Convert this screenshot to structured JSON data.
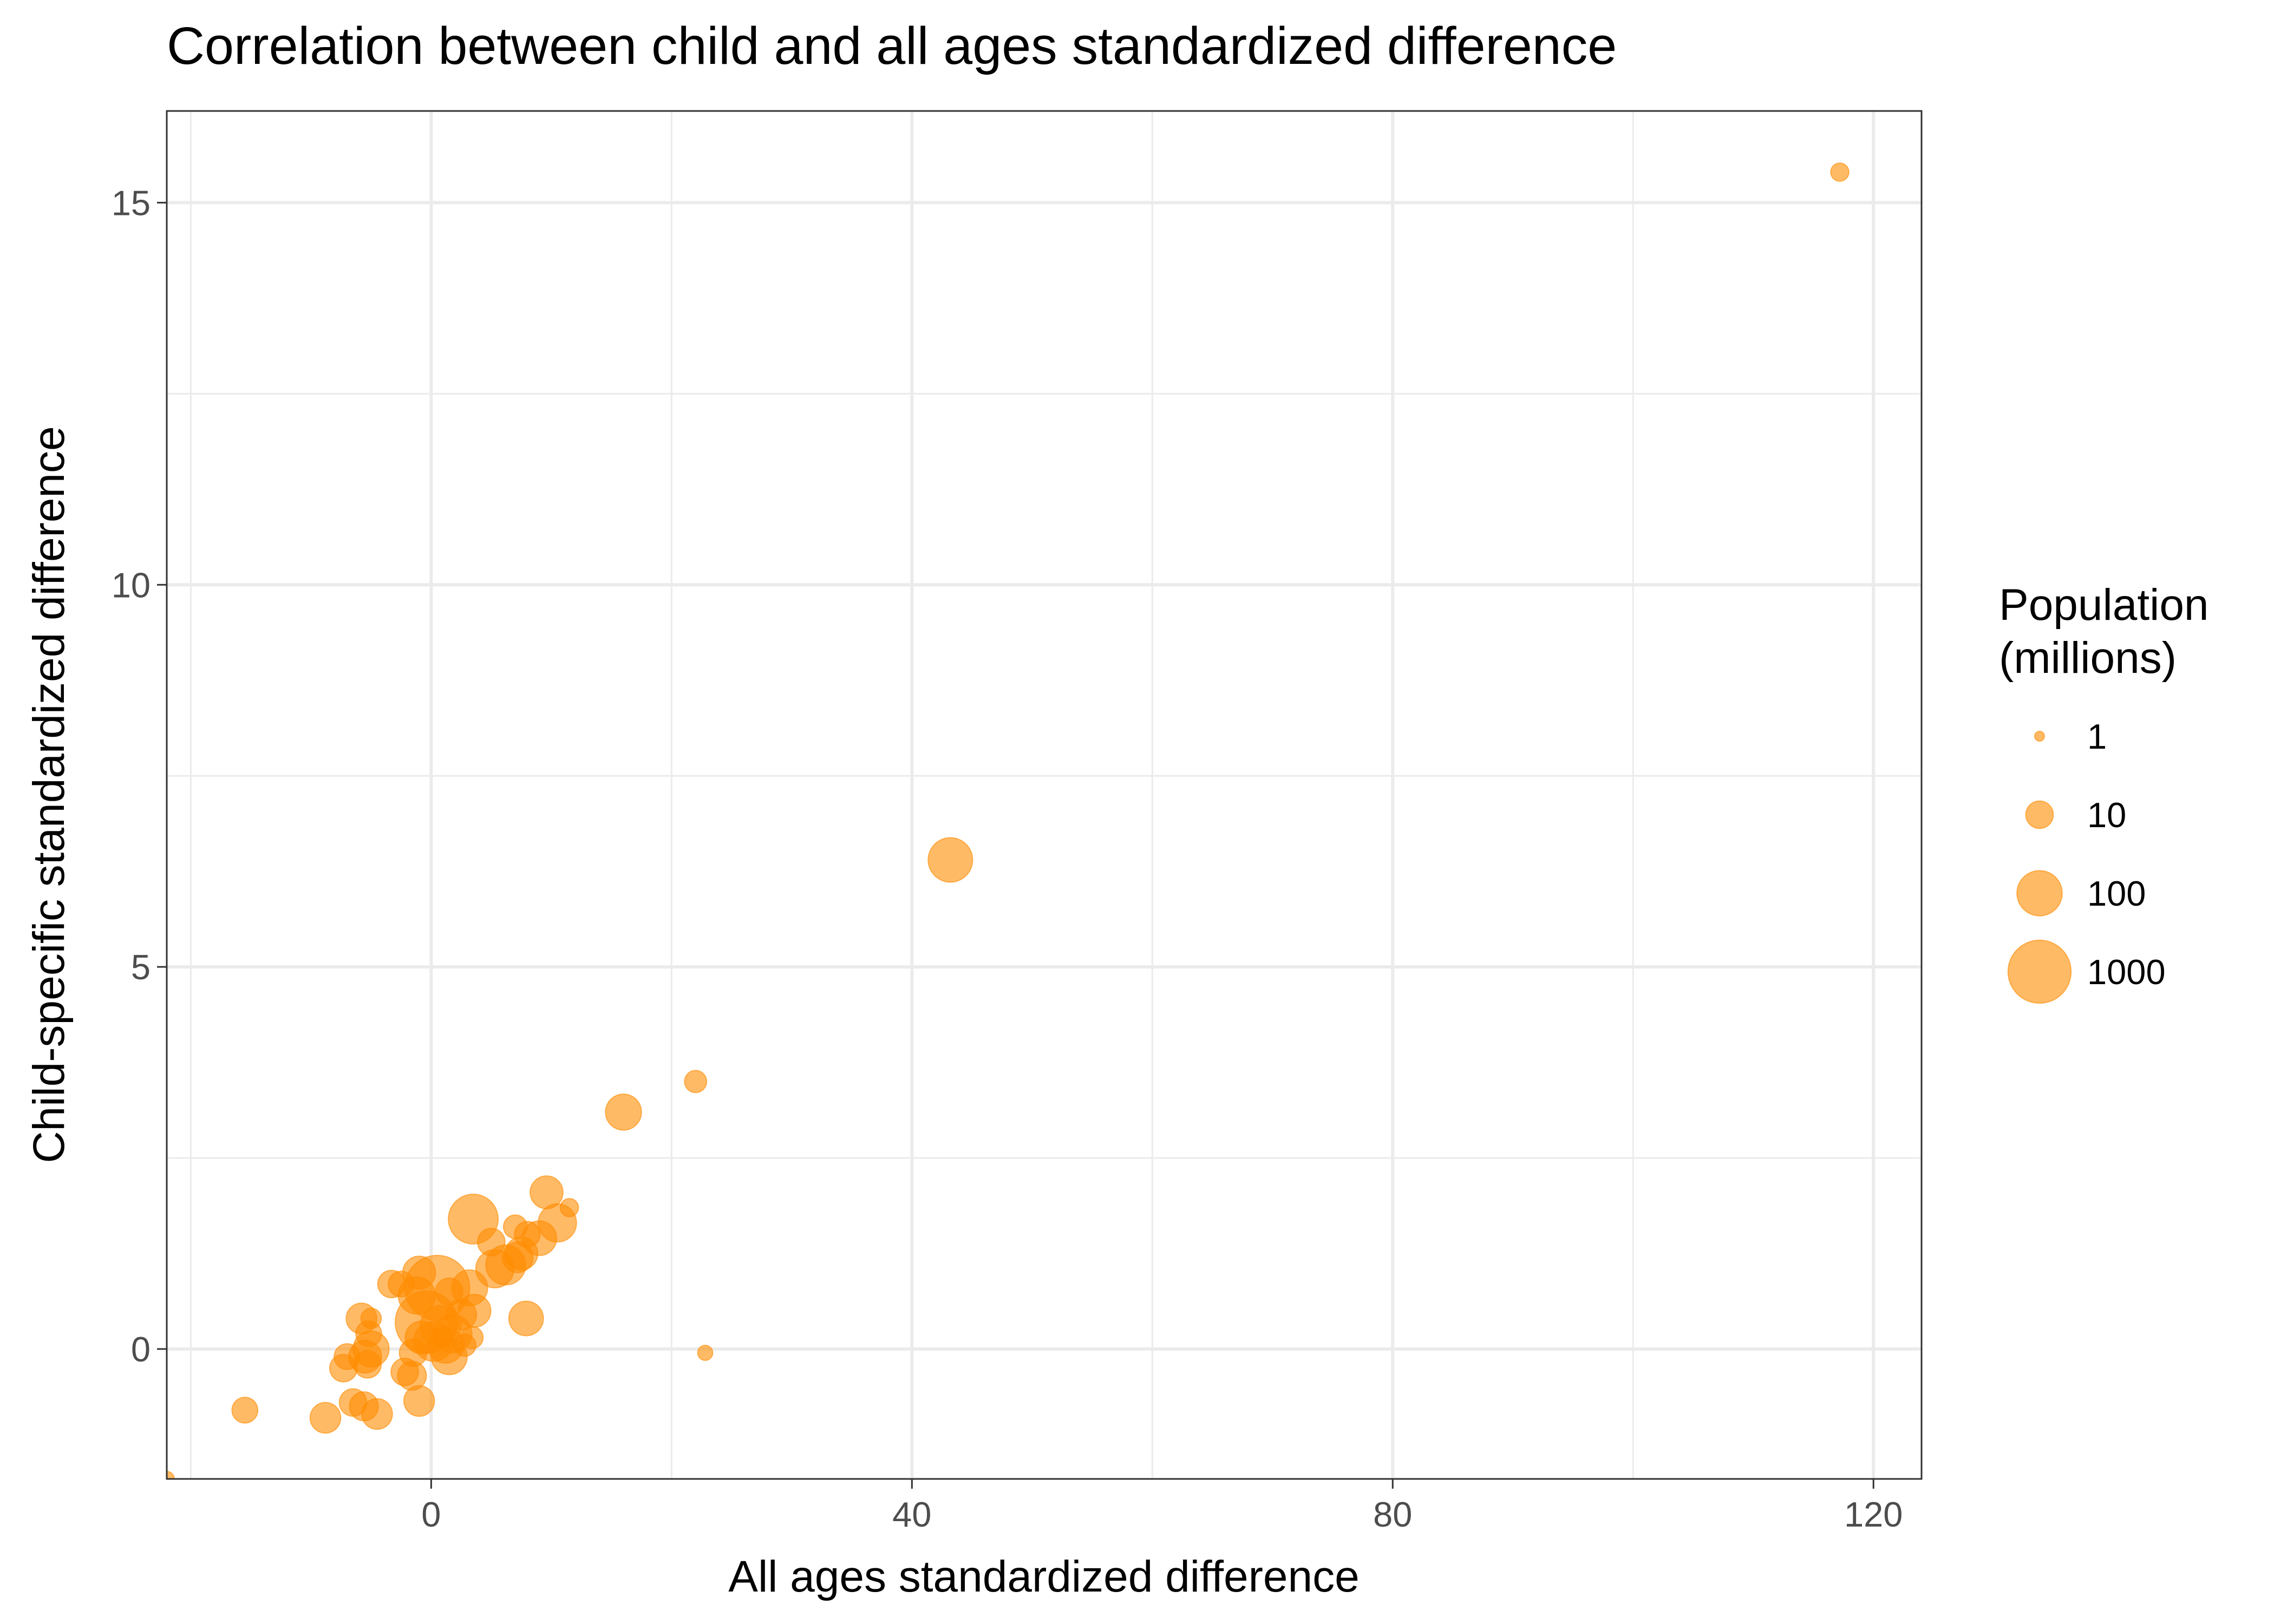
{
  "chart_data": {
    "type": "scatter",
    "title": "Correlation between child and all ages standardized difference",
    "xlabel": "All ages standardized difference",
    "ylabel": "Child-specific standardized difference",
    "xlim": [
      -22,
      124
    ],
    "ylim": [
      -1.7,
      16.2
    ],
    "x_ticks": [
      0,
      40,
      80,
      120
    ],
    "x_tick_labels": [
      "0",
      "40",
      "80",
      "120"
    ],
    "x_minor_ticks": [
      -20,
      20,
      60,
      100
    ],
    "y_ticks": [
      0,
      5,
      10,
      15
    ],
    "y_tick_labels": [
      "0",
      "5",
      "10",
      "15"
    ],
    "y_minor_ticks": [
      2.5,
      7.5,
      12.5
    ],
    "grid": true,
    "point_color": "#FF8C00",
    "point_opacity": 0.6,
    "legend": {
      "title_lines": [
        "Population",
        "(millions)"
      ],
      "placement": "right",
      "entries": [
        {
          "label": "1",
          "value": 1
        },
        {
          "label": "10",
          "value": 10
        },
        {
          "label": "100",
          "value": 100
        },
        {
          "label": "1000",
          "value": 1000
        }
      ]
    },
    "points": [
      {
        "x": 117.2,
        "y": 15.4,
        "size": 3
      },
      {
        "x": 43.2,
        "y": 6.4,
        "size": 90
      },
      {
        "x": 22.8,
        "y": -0.05,
        "size": 2
      },
      {
        "x": 22.0,
        "y": 3.5,
        "size": 5
      },
      {
        "x": 16.0,
        "y": 3.1,
        "size": 30
      },
      {
        "x": 11.5,
        "y": 1.85,
        "size": 3
      },
      {
        "x": 9.6,
        "y": 2.05,
        "size": 20
      },
      {
        "x": 10.5,
        "y": 1.65,
        "size": 40
      },
      {
        "x": 9.0,
        "y": 1.45,
        "size": 25
      },
      {
        "x": 8.0,
        "y": 1.5,
        "size": 8
      },
      {
        "x": 7.0,
        "y": 1.6,
        "size": 6
      },
      {
        "x": 3.5,
        "y": 1.7,
        "size": 180
      },
      {
        "x": 7.5,
        "y": 1.25,
        "size": 20
      },
      {
        "x": 7.2,
        "y": 1.2,
        "size": 15
      },
      {
        "x": 5.0,
        "y": 1.4,
        "size": 10
      },
      {
        "x": 6.2,
        "y": 1.1,
        "size": 50
      },
      {
        "x": 5.3,
        "y": 1.05,
        "size": 40
      },
      {
        "x": 3.2,
        "y": 0.8,
        "size": 30
      },
      {
        "x": 7.9,
        "y": 0.4,
        "size": 25
      },
      {
        "x": 3.6,
        "y": 0.5,
        "size": 20
      },
      {
        "x": 2.5,
        "y": 0.45,
        "size": 15
      },
      {
        "x": 1.5,
        "y": 0.75,
        "size": 10
      },
      {
        "x": 0.5,
        "y": 0.8,
        "size": 1300
      },
      {
        "x": -0.4,
        "y": 0.35,
        "size": 900
      },
      {
        "x": -1.0,
        "y": 1.0,
        "size": 20
      },
      {
        "x": -1.2,
        "y": 0.7,
        "size": 35
      },
      {
        "x": 0.8,
        "y": 0.3,
        "size": 60
      },
      {
        "x": 1.8,
        "y": 0.2,
        "size": 40
      },
      {
        "x": 1.2,
        "y": 0.05,
        "size": 30
      },
      {
        "x": 0.2,
        "y": 0.1,
        "size": 50
      },
      {
        "x": -0.8,
        "y": 0.15,
        "size": 20
      },
      {
        "x": -1.5,
        "y": -0.05,
        "size": 10
      },
      {
        "x": 3.4,
        "y": 0.15,
        "size": 5
      },
      {
        "x": 2.8,
        "y": 0.05,
        "size": 5
      },
      {
        "x": 1.5,
        "y": -0.1,
        "size": 30
      },
      {
        "x": -2.5,
        "y": 0.85,
        "size": 8
      },
      {
        "x": -3.3,
        "y": 0.85,
        "size": 10
      },
      {
        "x": -5.0,
        "y": 0.4,
        "size": 4
      },
      {
        "x": -5.8,
        "y": 0.4,
        "size": 15
      },
      {
        "x": -5.2,
        "y": 0.2,
        "size": 8
      },
      {
        "x": -5.0,
        "y": 0.0,
        "size": 30
      },
      {
        "x": -5.5,
        "y": -0.1,
        "size": 20
      },
      {
        "x": -5.3,
        "y": -0.2,
        "size": 10
      },
      {
        "x": -7.0,
        "y": -0.1,
        "size": 8
      },
      {
        "x": -7.3,
        "y": -0.25,
        "size": 10
      },
      {
        "x": -2.2,
        "y": -0.3,
        "size": 10
      },
      {
        "x": -1.6,
        "y": -0.35,
        "size": 12
      },
      {
        "x": -1.0,
        "y": -0.68,
        "size": 15
      },
      {
        "x": -6.5,
        "y": -0.7,
        "size": 10
      },
      {
        "x": -5.6,
        "y": -0.75,
        "size": 12
      },
      {
        "x": -4.5,
        "y": -0.85,
        "size": 15
      },
      {
        "x": -8.8,
        "y": -0.9,
        "size": 15
      },
      {
        "x": -15.5,
        "y": -0.8,
        "size": 8
      },
      {
        "x": -22.0,
        "y": -1.7,
        "size": 2
      }
    ]
  }
}
